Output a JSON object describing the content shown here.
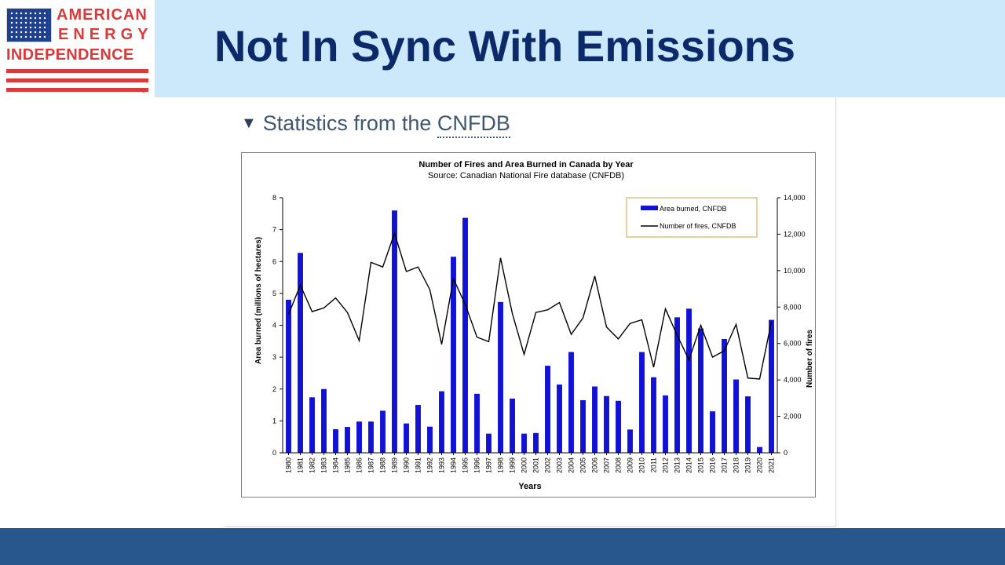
{
  "header": {
    "logo": {
      "line1": "AMERICAN",
      "line2": "ENERGY",
      "line3": "INDEPENDENCE",
      "trademark": "™"
    },
    "title": "Not In Sync With Emissions"
  },
  "section": {
    "heading_prefix": "Statistics from the ",
    "heading_link": "CNFDB"
  },
  "colors": {
    "header_band": "#cce9fb",
    "title": "#0c2a6a",
    "logo_red": "#d83b3b",
    "footer": "#27578c",
    "bars": "#1212d6",
    "line": "#000000"
  },
  "chart_data": {
    "type": "bar",
    "title": "Number of Fires and Area Burned in Canada by Year",
    "subtitle": "Source: Canadian National Fire database (CNFDB)",
    "xlabel": "Years",
    "ylabel": "Area burned (millions of hectares)",
    "y2label": "Number of fires",
    "ylim": [
      0,
      8
    ],
    "yticks": [
      "0",
      "1",
      "2",
      "3",
      "4",
      "5",
      "6",
      "7",
      "8"
    ],
    "y2lim": [
      0,
      14000
    ],
    "y2ticks": [
      "0",
      "2,000",
      "4,000",
      "6,000",
      "8,000",
      "10,000",
      "12,000",
      "14,000"
    ],
    "grid": false,
    "legend_position": "top-right",
    "categories": [
      "1980",
      "1981",
      "1982",
      "1983",
      "1984",
      "1985",
      "1986",
      "1987",
      "1988",
      "1989",
      "1990",
      "1991",
      "1992",
      "1993",
      "1994",
      "1995",
      "1996",
      "1997",
      "1998",
      "1999",
      "2000",
      "2001",
      "2002",
      "2003",
      "2004",
      "2005",
      "2006",
      "2007",
      "2008",
      "2009",
      "2010",
      "2011",
      "2012",
      "2013",
      "2014",
      "2015",
      "2016",
      "2017",
      "2018",
      "2019",
      "2020",
      "2021"
    ],
    "series": [
      {
        "name": "Area burned, CNFDB",
        "type": "bar",
        "axis": "left",
        "values": [
          4.8,
          6.27,
          1.74,
          2.0,
          0.74,
          0.81,
          0.98,
          0.98,
          1.32,
          7.6,
          0.92,
          1.5,
          0.82,
          1.93,
          6.15,
          7.37,
          1.85,
          0.6,
          4.73,
          1.7,
          0.6,
          0.62,
          2.73,
          2.14,
          3.16,
          1.65,
          2.08,
          1.78,
          1.63,
          0.73,
          3.16,
          2.37,
          1.8,
          4.25,
          4.52,
          3.9,
          1.3,
          3.57,
          2.3,
          1.77,
          0.18,
          4.17
        ]
      },
      {
        "name": "Number of fires, CNFDB",
        "type": "line",
        "axis": "right",
        "values": [
          7600,
          9200,
          7750,
          7950,
          8500,
          7700,
          6150,
          10450,
          10200,
          12050,
          9950,
          10200,
          8950,
          5950,
          9550,
          8150,
          6350,
          6100,
          10700,
          7650,
          5400,
          7700,
          7850,
          8250,
          6500,
          7400,
          9700,
          6900,
          6250,
          7100,
          7300,
          4700,
          7900,
          6450,
          5100,
          7000,
          5250,
          5600,
          7050,
          4100,
          4050,
          7200
        ]
      }
    ]
  }
}
